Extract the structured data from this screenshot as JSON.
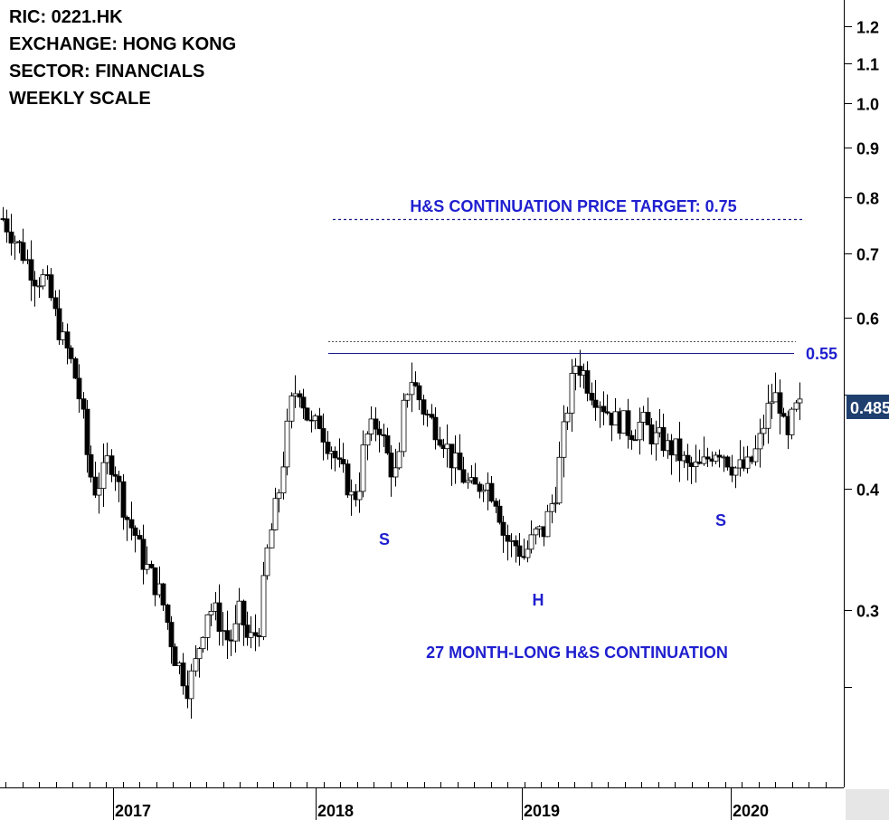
{
  "header": {
    "ric": "RIC: 0221.HK",
    "exchange": "EXCHANGE: HONG KONG",
    "sector": "SECTOR: FINANCIALS",
    "scale": "WEEKLY SCALE"
  },
  "chart_data": {
    "type": "candlestick",
    "scale": "log",
    "y_tick_labels": [
      "1.2",
      "1.1",
      "1.0",
      "0.9",
      "0.8",
      "0.7",
      "0.6",
      "0.4",
      "0.3"
    ],
    "y_ticks": [
      1.2,
      1.1,
      1.0,
      0.9,
      0.8,
      0.7,
      0.6,
      0.4,
      0.3
    ],
    "x_tick_labels": [
      "2017",
      "2018",
      "2019",
      "2020"
    ],
    "last_price": "0.485",
    "neckline_label": "0.55",
    "neckline": 0.55,
    "target": 0.75,
    "annotations": {
      "target": "H&S CONTINUATION PRICE TARGET: 0.75",
      "left_shoulder": "S",
      "head": "H",
      "right_shoulder": "S",
      "pattern": "27 MONTH-LONG H&S CONTINUATION"
    },
    "colors": {
      "up": "#ffffff",
      "down": "#000000",
      "text_accent": "#1f1fcf",
      "price_box": "#1f3f6f",
      "neckline": "#1a1a8a"
    },
    "weekly_close_path": [
      0.76,
      0.74,
      0.72,
      0.7,
      0.68,
      0.66,
      0.66,
      0.64,
      0.6,
      0.57,
      0.55,
      0.52,
      0.48,
      0.42,
      0.4,
      0.41,
      0.43,
      0.42,
      0.39,
      0.37,
      0.36,
      0.34,
      0.33,
      0.32,
      0.31,
      0.29,
      0.27,
      0.26,
      0.25,
      0.26,
      0.28,
      0.3,
      0.3,
      0.29,
      0.28,
      0.28,
      0.3,
      0.28,
      0.28,
      0.29,
      0.34,
      0.37,
      0.4,
      0.45,
      0.5,
      0.51,
      0.48,
      0.46,
      0.47,
      0.45,
      0.44,
      0.42,
      0.41,
      0.39,
      0.4,
      0.45,
      0.46,
      0.47,
      0.44,
      0.42,
      0.41,
      0.5,
      0.52,
      0.5,
      0.48,
      0.47,
      0.46,
      0.45,
      0.43,
      0.42,
      0.41,
      0.4,
      0.4,
      0.41,
      0.4,
      0.39,
      0.36,
      0.35,
      0.35,
      0.34,
      0.35,
      0.36,
      0.36,
      0.38,
      0.4,
      0.45,
      0.5,
      0.54,
      0.53,
      0.51,
      0.5,
      0.49,
      0.48,
      0.47,
      0.47,
      0.46,
      0.46,
      0.47,
      0.46,
      0.45,
      0.45,
      0.44,
      0.44,
      0.43,
      0.42,
      0.42,
      0.42,
      0.43,
      0.44,
      0.44,
      0.43,
      0.42,
      0.42,
      0.42,
      0.43,
      0.45,
      0.48,
      0.5,
      0.49,
      0.44,
      0.48,
      0.485
    ]
  }
}
